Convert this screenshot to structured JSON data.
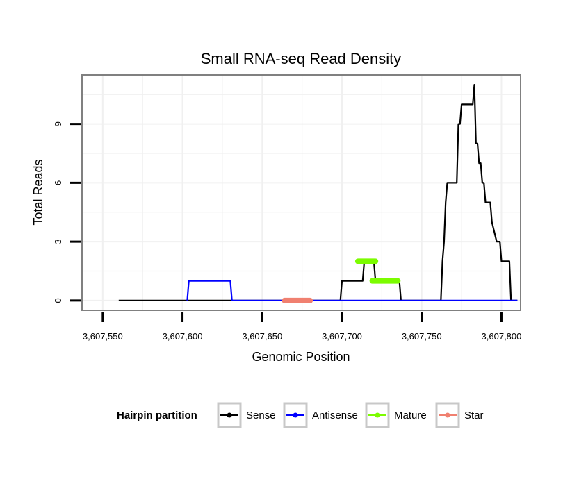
{
  "chart_data": {
    "type": "line",
    "title": "Small RNA-seq Read Density",
    "xlabel": "Genomic Position",
    "ylabel": "Total Reads",
    "xlim": [
      3607537,
      3607812
    ],
    "ylim": [
      -0.5,
      11.5
    ],
    "x_ticks": [
      3607550,
      3607600,
      3607650,
      3607700,
      3607750,
      3607800
    ],
    "x_tick_labels": [
      "3,607,550",
      "3,607,600",
      "3,607,650",
      "3,607,700",
      "3,607,750",
      "3,607,800"
    ],
    "y_ticks": [
      0,
      3,
      6,
      9
    ],
    "y_tick_labels": [
      "0",
      "3",
      "6",
      "9"
    ],
    "grid": true,
    "legend": {
      "title": "Hairpin partition",
      "position": "bottom",
      "entries": [
        {
          "name": "Sense",
          "color": "#000000"
        },
        {
          "name": "Antisense",
          "color": "#0000ff"
        },
        {
          "name": "Mature",
          "color": "#7cfc00"
        },
        {
          "name": "Star",
          "color": "#f08070"
        }
      ]
    },
    "series": [
      {
        "name": "Sense",
        "color": "#000000",
        "x": [
          3607560,
          3607699,
          3607700,
          3607713,
          3607714,
          3607720,
          3607721,
          3607736,
          3607737,
          3607762,
          3607763,
          3607764,
          3607765,
          3607766,
          3607772,
          3607773,
          3607774,
          3607775,
          3607782,
          3607783,
          3607784,
          3607785,
          3607786,
          3607787,
          3607788,
          3607789,
          3607790,
          3607793,
          3607794,
          3607797,
          3607798,
          3607799,
          3607800,
          3607805,
          3607806,
          3607810
        ],
        "values": [
          0,
          0,
          1,
          1,
          2,
          2,
          1,
          1,
          0,
          0,
          2,
          3,
          5,
          6,
          6,
          9,
          9,
          10,
          10,
          11,
          8,
          8,
          7,
          7,
          6,
          6,
          5,
          5,
          4,
          3,
          3,
          3,
          2,
          2,
          0,
          0
        ]
      },
      {
        "name": "Antisense",
        "color": "#0000ff",
        "x": [
          3607603,
          3607604,
          3607630,
          3607631,
          3607699,
          3607810
        ],
        "values": [
          0,
          1,
          1,
          0,
          0,
          0
        ]
      },
      {
        "name": "Mature",
        "color": "#7cfc00",
        "segments": [
          {
            "x_start": 3607710,
            "x_end": 3607721,
            "value": 2
          },
          {
            "x_start": 3607719,
            "x_end": 3607735,
            "value": 1
          }
        ]
      },
      {
        "name": "Star",
        "color": "#f08070",
        "segments": [
          {
            "x_start": 3607664,
            "x_end": 3607680,
            "value": 0
          }
        ]
      }
    ]
  }
}
